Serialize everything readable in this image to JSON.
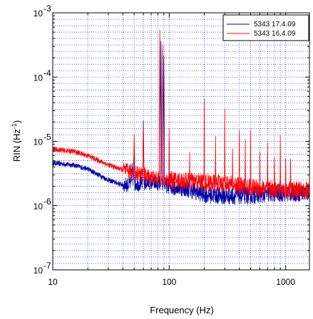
{
  "chart_data": {
    "type": "line",
    "xlabel": "Frequency (Hz)",
    "ylabel_main": "RIN (Hz",
    "ylabel_exp": "-1",
    "ylabel_close": ")",
    "x_scale": "log",
    "y_scale": "log",
    "xlim": [
      10,
      1600
    ],
    "ylim": [
      1e-07,
      0.001
    ],
    "grid": true,
    "legend_position": "top-right",
    "x_ticks": [
      {
        "value": 10,
        "label": "10"
      },
      {
        "value": 100,
        "label": "100"
      },
      {
        "value": 1000,
        "label": "1000"
      }
    ],
    "y_ticks": [
      {
        "value": 1e-07,
        "base": "10",
        "exp": "-7"
      },
      {
        "value": 1e-06,
        "base": "10",
        "exp": "-6"
      },
      {
        "value": 1e-05,
        "base": "10",
        "exp": "-5"
      },
      {
        "value": 0.0001,
        "base": "10",
        "exp": "-4"
      },
      {
        "value": 0.001,
        "base": "10",
        "exp": "-3"
      }
    ],
    "series": [
      {
        "name": "5343 17.4.09",
        "color": "#0000aa",
        "baseline": [
          [
            10,
            4.6e-06
          ],
          [
            15,
            4.3e-06
          ],
          [
            20,
            3.7e-06
          ],
          [
            25,
            3e-06
          ],
          [
            30,
            2.5e-06
          ],
          [
            40,
            2.1e-06
          ],
          [
            50,
            2.2e-06
          ],
          [
            60,
            2.2e-06
          ],
          [
            70,
            2.3e-06
          ],
          [
            80,
            2.2e-06
          ],
          [
            100,
            2e-06
          ],
          [
            120,
            1.95e-06
          ],
          [
            150,
            1.8e-06
          ],
          [
            200,
            1.5e-06
          ],
          [
            300,
            1.4e-06
          ],
          [
            500,
            1.45e-06
          ],
          [
            800,
            1.55e-06
          ],
          [
            1600,
            1.6e-06
          ]
        ],
        "peaks": [
          [
            48,
            5e-06
          ],
          [
            50,
            9e-06
          ],
          [
            60,
            2.5e-05
          ],
          [
            85,
            0.0006
          ],
          [
            90,
            0.00025
          ],
          [
            100,
            1.2e-05
          ],
          [
            150,
            5e-06
          ]
        ]
      },
      {
        "name": "5343 16.4.09",
        "color": "#ff0000",
        "baseline": [
          [
            10,
            7.5e-06
          ],
          [
            15,
            7e-06
          ],
          [
            20,
            6e-06
          ],
          [
            25,
            5e-06
          ],
          [
            30,
            4.3e-06
          ],
          [
            40,
            3.6e-06
          ],
          [
            50,
            3.3e-06
          ],
          [
            60,
            3e-06
          ],
          [
            70,
            2.8e-06
          ],
          [
            80,
            2.6e-06
          ],
          [
            100,
            2.5e-06
          ],
          [
            150,
            2.4e-06
          ],
          [
            200,
            2.3e-06
          ],
          [
            300,
            2.2e-06
          ],
          [
            500,
            1.9e-06
          ],
          [
            800,
            1.8e-06
          ],
          [
            1600,
            1.7e-06
          ]
        ],
        "peaks": [
          [
            50,
            1.3e-05
          ],
          [
            60,
            2e-05
          ],
          [
            83,
            0.00075
          ],
          [
            88,
            0.00035
          ],
          [
            100,
            2e-05
          ],
          [
            150,
            7e-06
          ],
          [
            200,
            0.00012
          ],
          [
            250,
            1.3e-05
          ],
          [
            300,
            5e-05
          ],
          [
            350,
            1e-05
          ],
          [
            400,
            3e-05
          ],
          [
            450,
            1.2e-05
          ],
          [
            500,
            1.8e-05
          ],
          [
            600,
            1.2e-05
          ],
          [
            700,
            1e-05
          ],
          [
            800,
            7e-06
          ],
          [
            900,
            1.8e-05
          ],
          [
            1000,
            7e-06
          ],
          [
            1100,
            8e-06
          ]
        ]
      }
    ]
  }
}
